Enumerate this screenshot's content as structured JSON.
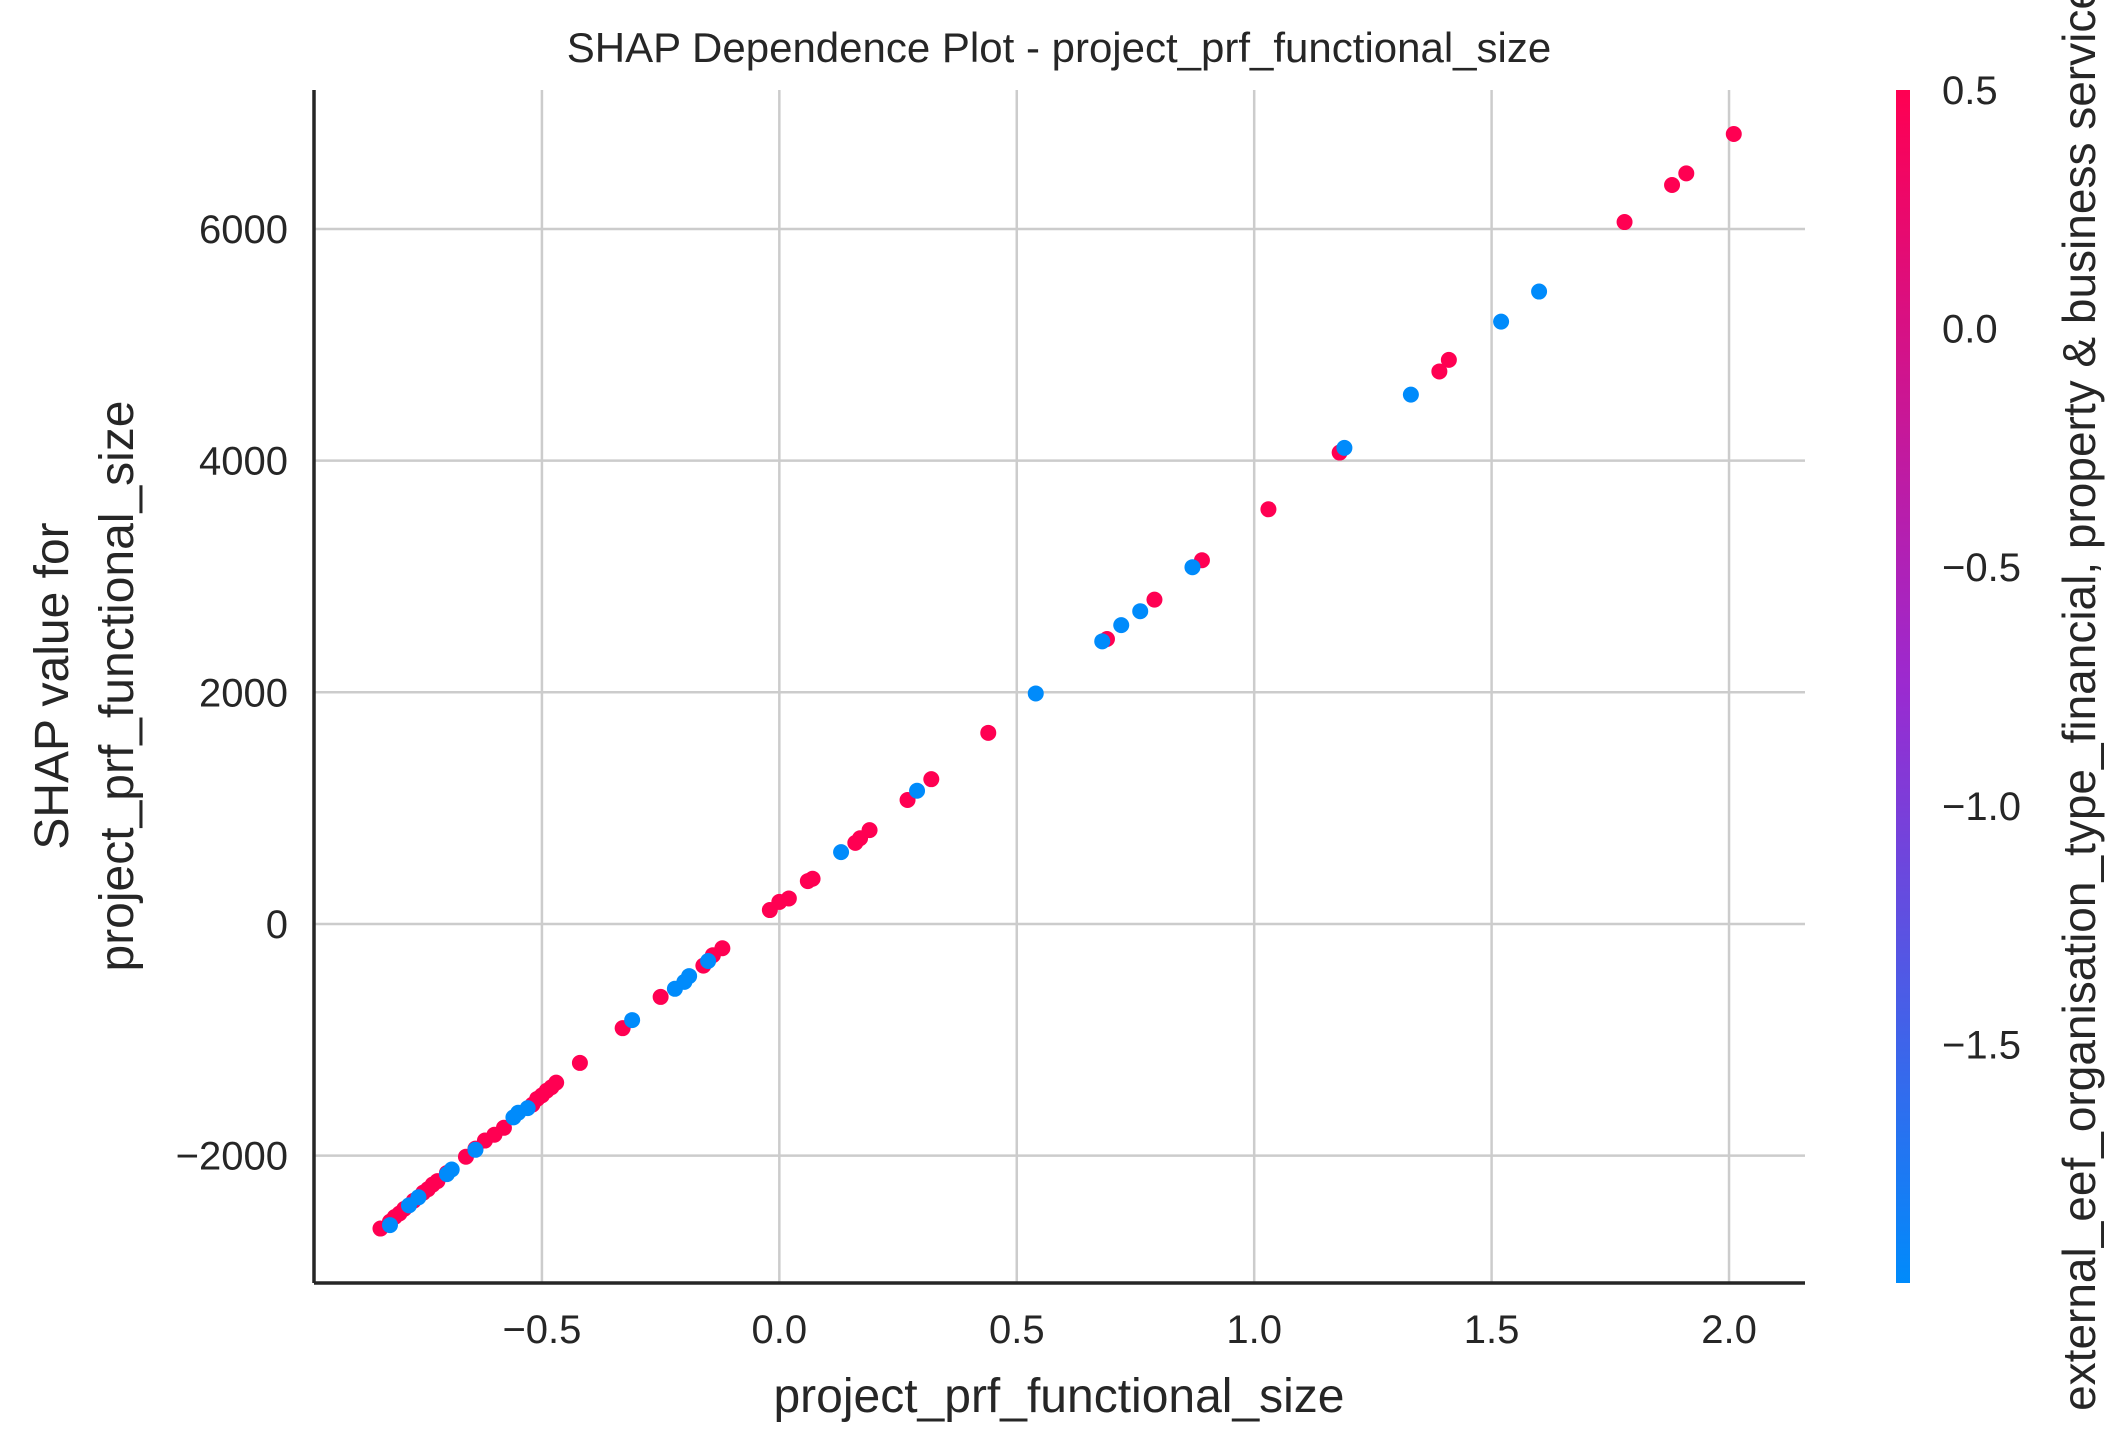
{
  "chart_data": {
    "type": "scatter",
    "title": "SHAP Dependence Plot - project_prf_functional_size",
    "xlabel": "project_prf_functional_size",
    "ylabel_lines": [
      "SHAP value for",
      "project_prf_functional_size"
    ],
    "colorbar_label": "external_eef_organisation_type_financial, property & business services",
    "xlim": [
      -0.98,
      2.16
    ],
    "ylim": [
      -3100,
      7200
    ],
    "x_ticks": [
      -0.5,
      0.0,
      0.5,
      1.0,
      1.5,
      2.0
    ],
    "x_tick_labels": [
      "−0.5",
      "0.0",
      "0.5",
      "1.0",
      "1.5",
      "2.0"
    ],
    "y_ticks": [
      -2000,
      0,
      2000,
      4000,
      6000
    ],
    "y_tick_labels": [
      "−2000",
      "0",
      "2000",
      "4000",
      "6000"
    ],
    "colorbar_ticks": [
      0.5,
      0.0,
      -0.5,
      -1.0,
      -1.5
    ],
    "colorbar_tick_labels": [
      "0.5",
      "0.0",
      "−0.5",
      "−1.0",
      "−1.5"
    ],
    "colorbar_range": [
      -2.0,
      0.5
    ],
    "colors": {
      "low": "#008bfb",
      "high": "#ff0052",
      "mid": "#9b2ad0"
    },
    "grid": true,
    "series": [
      {
        "color_value": 0.5,
        "points": [
          [
            -0.84,
            -2630
          ],
          [
            -0.82,
            -2570
          ],
          [
            -0.81,
            -2530
          ],
          [
            -0.8,
            -2500
          ],
          [
            -0.79,
            -2460
          ],
          [
            -0.77,
            -2390
          ],
          [
            -0.75,
            -2320
          ],
          [
            -0.74,
            -2290
          ],
          [
            -0.73,
            -2250
          ],
          [
            -0.72,
            -2220
          ],
          [
            -0.7,
            -2150
          ],
          [
            -0.66,
            -2010
          ],
          [
            -0.64,
            -1940
          ],
          [
            -0.62,
            -1870
          ],
          [
            -0.6,
            -1820
          ],
          [
            -0.58,
            -1760
          ],
          [
            -0.52,
            -1560
          ],
          [
            -0.51,
            -1510
          ],
          [
            -0.5,
            -1480
          ],
          [
            -0.49,
            -1440
          ],
          [
            -0.48,
            -1410
          ],
          [
            -0.47,
            -1370
          ],
          [
            -0.42,
            -1200
          ],
          [
            -0.33,
            -900
          ],
          [
            -0.25,
            -630
          ],
          [
            -0.16,
            -360
          ],
          [
            -0.14,
            -270
          ],
          [
            -0.12,
            -210
          ],
          [
            -0.02,
            120
          ],
          [
            0.0,
            190
          ],
          [
            0.02,
            220
          ],
          [
            0.06,
            370
          ],
          [
            0.07,
            390
          ],
          [
            0.16,
            700
          ],
          [
            0.17,
            740
          ],
          [
            0.19,
            810
          ],
          [
            0.27,
            1070
          ],
          [
            0.32,
            1250
          ],
          [
            0.44,
            1650
          ],
          [
            0.69,
            2460
          ],
          [
            0.79,
            2800
          ],
          [
            0.89,
            3140
          ],
          [
            1.03,
            3580
          ],
          [
            1.18,
            4070
          ],
          [
            1.39,
            4770
          ],
          [
            1.41,
            4870
          ],
          [
            1.78,
            6060
          ],
          [
            1.88,
            6380
          ],
          [
            1.91,
            6480
          ],
          [
            2.01,
            6820
          ]
        ]
      },
      {
        "color_value": -2.0,
        "points": [
          [
            -0.82,
            -2600
          ],
          [
            -0.78,
            -2430
          ],
          [
            -0.76,
            -2360
          ],
          [
            -0.7,
            -2160
          ],
          [
            -0.69,
            -2120
          ],
          [
            -0.64,
            -1950
          ],
          [
            -0.56,
            -1670
          ],
          [
            -0.55,
            -1630
          ],
          [
            -0.53,
            -1590
          ],
          [
            -0.31,
            -830
          ],
          [
            -0.22,
            -560
          ],
          [
            -0.2,
            -500
          ],
          [
            -0.19,
            -450
          ],
          [
            -0.15,
            -320
          ],
          [
            0.13,
            620
          ],
          [
            0.29,
            1150
          ],
          [
            0.54,
            1990
          ],
          [
            0.68,
            2440
          ],
          [
            0.72,
            2580
          ],
          [
            0.76,
            2700
          ],
          [
            0.87,
            3080
          ],
          [
            1.19,
            4110
          ],
          [
            1.33,
            4570
          ],
          [
            1.52,
            5200
          ],
          [
            1.6,
            5460
          ]
        ]
      }
    ]
  }
}
